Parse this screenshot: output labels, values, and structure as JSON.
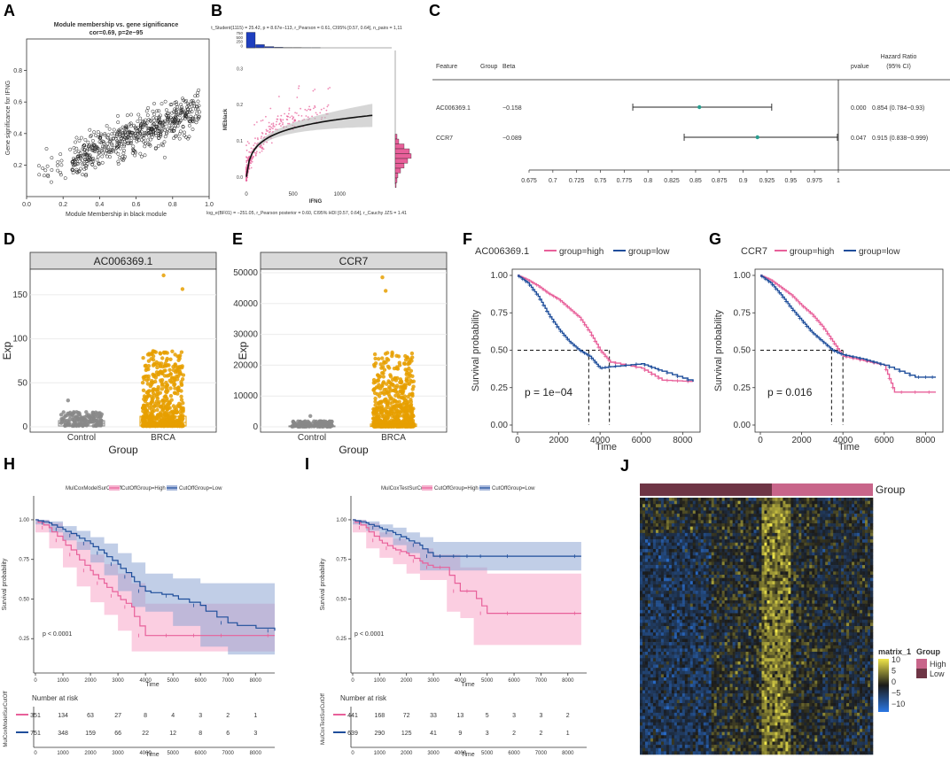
{
  "panel_letters": [
    "A",
    "B",
    "C",
    "D",
    "E",
    "F",
    "G",
    "H",
    "I",
    "J"
  ],
  "colors": {
    "high": "#e8609a",
    "low": "#1f4e9b",
    "orange": "#e69f00",
    "gray": "#888888",
    "heat_low": "#2b78e4",
    "heat_high": "#f0e64a",
    "group_high": "#c8658a",
    "group_low": "#6e3545"
  },
  "chart_data": [
    {
      "id": "A",
      "type": "scatter",
      "title": "Module membership vs. gene significance",
      "subtitle": "cor=0.69, p=2e−95",
      "xlabel": "Module Membership in black module",
      "ylabel": "Gene significance for IFNG",
      "xlim": [
        0,
        1
      ],
      "ylim": [
        0,
        1
      ],
      "xticks": [
        "0.0",
        "0.2",
        "0.4",
        "0.6",
        "0.8",
        "1.0"
      ],
      "yticks": [
        "0.2",
        "0.4",
        "0.6",
        "0.8"
      ],
      "n_points": 600
    },
    {
      "id": "B",
      "type": "scatter",
      "stat_top": "t_Student(1115) = 25.42, p = 8.67e−113, r_Pearson = 0.61, CI95% [0.57, 0.64], n_pairs = 1,11",
      "stat_bottom": "log_e(BF01) = −251.05, r_Pearson posterior = 0.60, CI95% HDI [0.57, 0.64], r_Cauchy JZS = 1.41",
      "xlabel": "IFNG",
      "ylabel": "MEblack",
      "xticks": [
        "0",
        "500",
        "1000"
      ],
      "yticks": [
        "0.0",
        "0.1",
        "0.2",
        "0.3"
      ],
      "hist_ticks": [
        "750",
        "500",
        "250",
        "0"
      ]
    },
    {
      "id": "C",
      "type": "table",
      "headers": {
        "feature": "Feature",
        "group": "Group",
        "beta": "Beta",
        "pvalue": "pvalue",
        "hr": "Hazard Ratio",
        "hr_ci": "(95% CI)"
      },
      "rows": [
        {
          "feature": "AC006369.1",
          "beta": "−0.158",
          "pvalue": "0.000",
          "hr_text": "0.854 (0.784−0.93)",
          "hr": 0.854,
          "lo": 0.784,
          "hi": 0.93
        },
        {
          "feature": "CCR7",
          "beta": "−0.089",
          "pvalue": "0.047",
          "hr_text": "0.915 (0.838−0.999)",
          "hr": 0.915,
          "lo": 0.838,
          "hi": 0.999
        }
      ],
      "xticks": [
        "0.675",
        "0.7",
        "0.725",
        "0.75",
        "0.775",
        "0.8",
        "0.825",
        "0.85",
        "0.875",
        "0.9",
        "0.925",
        "0.95",
        "0.975",
        "1"
      ],
      "xlim": [
        0.675,
        1
      ]
    },
    {
      "id": "D",
      "type": "box",
      "title": "AC006369.1",
      "categories": [
        "Control",
        "BRCA"
      ],
      "xlabel": "Group",
      "ylabel": "Exp",
      "ylim": [
        0,
        175
      ],
      "yticks": [
        "0",
        "50",
        "100",
        "150"
      ],
      "ytick_values": [
        0,
        50,
        100,
        150
      ],
      "boxes": [
        {
          "q1": 1,
          "med": 4,
          "q3": 7,
          "max": 30
        },
        {
          "q1": 1,
          "med": 5,
          "q3": 12,
          "max": 172
        }
      ]
    },
    {
      "id": "E",
      "type": "box",
      "title": "CCR7",
      "categories": [
        "Control",
        "BRCA"
      ],
      "xlabel": "Group",
      "ylabel": "Exp",
      "ylim": [
        0,
        50000
      ],
      "yticks": [
        "0",
        "10000",
        "20000",
        "30000",
        "40000",
        "50000"
      ],
      "ytick_values": [
        0,
        10000,
        20000,
        30000,
        40000,
        50000
      ],
      "boxes": [
        {
          "q1": 50,
          "med": 150,
          "q3": 300,
          "max": 3500
        },
        {
          "q1": 100,
          "med": 300,
          "q3": 900,
          "max": 48500
        }
      ]
    },
    {
      "id": "F",
      "type": "line",
      "title": "AC006369.1",
      "legend": [
        "group=high",
        "group=low"
      ],
      "pvalue": "p = 1e−04",
      "xlabel": "Time",
      "ylabel": "Survival probability",
      "xlim": [
        0,
        8500
      ],
      "ylim": [
        0,
        1
      ],
      "xticks": [
        "0",
        "2000",
        "4000",
        "6000",
        "8000"
      ],
      "yticks": [
        "0.00",
        "0.25",
        "0.50",
        "0.75",
        "1.00"
      ],
      "medians": [
        4450,
        3450
      ],
      "series": [
        {
          "name": "group=high",
          "x": [
            0,
            500,
            1000,
            1500,
            2000,
            2500,
            3000,
            3500,
            4000,
            4500,
            6000,
            7000,
            8500
          ],
          "y": [
            1,
            0.97,
            0.93,
            0.88,
            0.84,
            0.78,
            0.72,
            0.62,
            0.5,
            0.42,
            0.38,
            0.3,
            0.29
          ]
        },
        {
          "name": "group=low",
          "x": [
            0,
            500,
            1000,
            1500,
            2000,
            2500,
            3000,
            3500,
            4000,
            4500,
            6000,
            7000,
            8500
          ],
          "y": [
            1,
            0.95,
            0.86,
            0.74,
            0.64,
            0.56,
            0.5,
            0.46,
            0.38,
            0.39,
            0.41,
            0.36,
            0.29
          ]
        }
      ]
    },
    {
      "id": "G",
      "type": "line",
      "title": "CCR7",
      "legend": [
        "group=high",
        "group=low"
      ],
      "pvalue": "p = 0.016",
      "xlabel": "Time",
      "ylabel": "Survival probability",
      "xlim": [
        0,
        8500
      ],
      "ylim": [
        0,
        1
      ],
      "xticks": [
        "0",
        "2000",
        "4000",
        "6000",
        "8000"
      ],
      "yticks": [
        "0.00",
        "0.25",
        "0.50",
        "0.75",
        "1.00"
      ],
      "medians": [
        3450,
        4000
      ],
      "series": [
        {
          "name": "group=high",
          "x": [
            0,
            500,
            1000,
            1500,
            2000,
            2500,
            3000,
            3500,
            4000,
            5000,
            6000,
            6500,
            8500
          ],
          "y": [
            1,
            0.97,
            0.92,
            0.87,
            0.8,
            0.74,
            0.66,
            0.56,
            0.46,
            0.43,
            0.4,
            0.22,
            0.22
          ]
        },
        {
          "name": "group=low",
          "x": [
            0,
            500,
            1000,
            1500,
            2000,
            2500,
            3000,
            3500,
            4000,
            5000,
            6000,
            7500,
            8500
          ],
          "y": [
            1,
            0.95,
            0.87,
            0.78,
            0.7,
            0.62,
            0.56,
            0.5,
            0.47,
            0.44,
            0.4,
            0.32,
            0.32
          ]
        }
      ]
    },
    {
      "id": "H",
      "type": "line",
      "strata_title": "MulCoxModelSurCutOff",
      "legend": [
        "CutOffGroup=High",
        "CutOffGroup=Low"
      ],
      "pvalue": "p < 0.0001",
      "xlabel": "Time",
      "ylabel": "Survival probability",
      "xlim": [
        0,
        8700
      ],
      "ylim": [
        0,
        1
      ],
      "xticks": [
        "0",
        "1000",
        "2000",
        "3000",
        "4000",
        "5000",
        "6000",
        "7000",
        "8000"
      ],
      "yticks": [
        "0.25",
        "0.50",
        "0.75",
        "1.00"
      ],
      "series": [
        {
          "name": "CutOffGroup=High",
          "x": [
            0,
            500,
            1000,
            1500,
            2000,
            2500,
            3000,
            3500,
            4000,
            5000,
            6000,
            7000,
            8700
          ],
          "y": [
            1,
            0.95,
            0.87,
            0.78,
            0.68,
            0.6,
            0.52,
            0.45,
            0.27,
            0.27,
            0.27,
            0.27,
            0.27
          ],
          "lo": [
            1,
            0.92,
            0.82,
            0.7,
            0.58,
            0.48,
            0.4,
            0.3,
            0.17,
            0.17,
            0.17,
            0.17,
            0.17
          ],
          "hi": [
            1,
            0.98,
            0.92,
            0.86,
            0.78,
            0.72,
            0.66,
            0.6,
            0.47,
            0.47,
            0.47,
            0.47,
            0.47
          ]
        },
        {
          "name": "CutOffGroup=Low",
          "x": [
            0,
            500,
            1000,
            1500,
            2000,
            2500,
            3000,
            3500,
            4000,
            5000,
            6000,
            7000,
            8700
          ],
          "y": [
            1,
            0.98,
            0.94,
            0.9,
            0.85,
            0.79,
            0.72,
            0.64,
            0.55,
            0.52,
            0.46,
            0.35,
            0.3
          ],
          "lo": [
            1,
            0.97,
            0.92,
            0.87,
            0.81,
            0.73,
            0.65,
            0.55,
            0.45,
            0.42,
            0.33,
            0.2,
            0.15
          ],
          "hi": [
            1,
            0.99,
            0.96,
            0.93,
            0.89,
            0.85,
            0.79,
            0.73,
            0.66,
            0.63,
            0.6,
            0.6,
            0.6
          ]
        }
      ],
      "risk_table": {
        "title": "Number at risk",
        "ylabel": "MulCoxModelSurCutOff",
        "rows": [
          [
            "351",
            "134",
            "63",
            "27",
            "8",
            "4",
            "3",
            "2",
            "1"
          ],
          [
            "751",
            "348",
            "159",
            "66",
            "22",
            "12",
            "8",
            "6",
            "3"
          ]
        ]
      }
    },
    {
      "id": "I",
      "type": "line",
      "strata_title": "MulCoxTestSurCutOff",
      "legend": [
        "CutOffGroup=High",
        "CutOffGroup=Low"
      ],
      "pvalue": "p < 0.0001",
      "xlabel": "Time",
      "ylabel": "Survival probability",
      "xlim": [
        0,
        8700
      ],
      "ylim": [
        0,
        1
      ],
      "xticks": [
        "0",
        "1000",
        "2000",
        "3000",
        "4000",
        "5000",
        "6000",
        "7000",
        "8000"
      ],
      "yticks": [
        "0.25",
        "0.50",
        "0.75",
        "1.00"
      ],
      "series": [
        {
          "name": "CutOffGroup=High",
          "x": [
            0,
            500,
            1000,
            1500,
            2000,
            2500,
            3000,
            3500,
            4000,
            4500,
            5000,
            6000,
            8500
          ],
          "y": [
            1,
            0.95,
            0.87,
            0.82,
            0.79,
            0.74,
            0.7,
            0.7,
            0.55,
            0.55,
            0.41,
            0.41,
            0.41
          ],
          "lo": [
            1,
            0.92,
            0.82,
            0.76,
            0.72,
            0.66,
            0.62,
            0.62,
            0.42,
            0.38,
            0.21,
            0.21,
            0.21
          ],
          "hi": [
            1,
            0.98,
            0.92,
            0.88,
            0.86,
            0.82,
            0.78,
            0.78,
            0.7,
            0.7,
            0.66,
            0.66,
            0.66
          ]
        },
        {
          "name": "CutOffGroup=Low",
          "x": [
            0,
            500,
            1000,
            1500,
            2000,
            2500,
            3000,
            3500,
            4000,
            4500,
            5000,
            6000,
            8500
          ],
          "y": [
            1,
            0.98,
            0.95,
            0.92,
            0.88,
            0.84,
            0.77,
            0.77,
            0.77,
            0.77,
            0.77,
            0.77,
            0.77
          ],
          "lo": [
            1,
            0.97,
            0.93,
            0.89,
            0.84,
            0.79,
            0.68,
            0.68,
            0.68,
            0.68,
            0.68,
            0.68,
            0.68
          ],
          "hi": [
            1,
            0.99,
            0.97,
            0.95,
            0.92,
            0.89,
            0.86,
            0.86,
            0.86,
            0.86,
            0.86,
            0.86,
            0.86
          ]
        }
      ],
      "risk_table": {
        "title": "Number at risk",
        "ylabel": "MulCoxTestSurCutOff",
        "rows": [
          [
            "441",
            "168",
            "72",
            "33",
            "13",
            "5",
            "3",
            "3",
            "2"
          ],
          [
            "639",
            "290",
            "125",
            "41",
            "9",
            "3",
            "2",
            "2",
            "1"
          ]
        ]
      }
    },
    {
      "id": "J",
      "type": "heatmap",
      "annotation_label": "Group",
      "legend_matrix_title": "matrix_1",
      "legend_matrix_ticks": [
        "10",
        "5",
        "0",
        "−5",
        "−10"
      ],
      "legend_group_title": "Group",
      "legend_group_items": [
        "High",
        "Low"
      ]
    }
  ]
}
